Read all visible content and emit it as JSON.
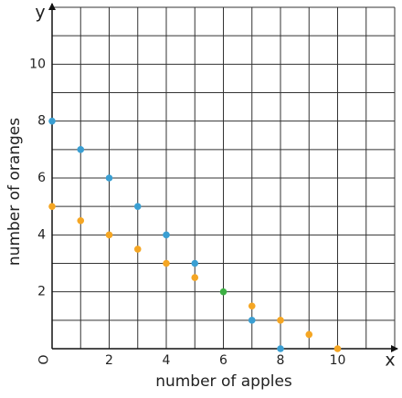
{
  "chart_data": {
    "type": "scatter",
    "x_label": "number of apples",
    "y_label": "number of oranges",
    "x_axis_name": "x",
    "y_axis_name": "y",
    "origin_label": "O",
    "xlim": [
      0,
      12
    ],
    "ylim": [
      0,
      12
    ],
    "xticks": [
      2,
      4,
      6,
      8,
      10
    ],
    "yticks": [
      2,
      4,
      6,
      8,
      10
    ],
    "xgrid": [
      1,
      2,
      3,
      4,
      5,
      6,
      7,
      8,
      9,
      10,
      11,
      12
    ],
    "ygrid": [
      1,
      2,
      3,
      4,
      5,
      6,
      7,
      8,
      9,
      10,
      11,
      12
    ],
    "grid": true,
    "series": [
      {
        "color": "#3a9fd3",
        "x": [
          0,
          1,
          2,
          3,
          4,
          5,
          7,
          8
        ],
        "values": [
          8,
          7,
          6,
          5,
          4,
          3,
          1,
          0
        ]
      },
      {
        "color": "#f5a623",
        "x": [
          0,
          1,
          2,
          3,
          4,
          5,
          7,
          8,
          9,
          10
        ],
        "values": [
          5,
          4.5,
          4,
          3.5,
          3,
          2.5,
          1.5,
          1,
          0.5,
          0
        ]
      },
      {
        "color": "#3cb043",
        "x": [
          6
        ],
        "values": [
          2
        ]
      }
    ]
  }
}
